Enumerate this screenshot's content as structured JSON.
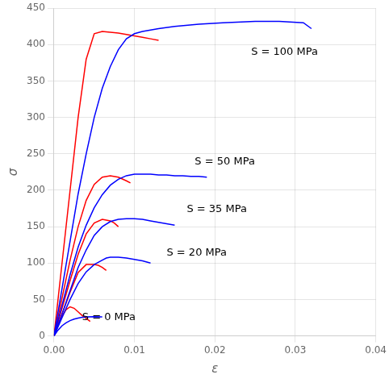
{
  "chart_data": {
    "type": "line",
    "xlabel": "ε",
    "ylabel": "σ",
    "xlim": [
      0,
      0.04
    ],
    "ylim": [
      0,
      450
    ],
    "xticks": [
      {
        "value": 0,
        "label": "0.00"
      },
      {
        "value": 0.01,
        "label": "0.01"
      },
      {
        "value": 0.02,
        "label": "0.02"
      },
      {
        "value": 0.03,
        "label": "0.03"
      },
      {
        "value": 0.04,
        "label": "0.04"
      }
    ],
    "yticks": [
      0,
      50,
      100,
      150,
      200,
      250,
      300,
      350,
      400,
      450
    ],
    "grid": true,
    "annotations": [
      {
        "text": "S = 100 MPa",
        "x": 0.0245,
        "y": 383
      },
      {
        "text": "S = 50 MPa",
        "x": 0.0175,
        "y": 232
      },
      {
        "text": "S = 35 MPa",
        "x": 0.0165,
        "y": 167
      },
      {
        "text": "S = 20 MPa",
        "x": 0.014,
        "y": 107
      },
      {
        "text": "S = 0 MPa",
        "x": 0.0035,
        "y": 18
      }
    ],
    "series": [
      {
        "color": "#FF0000",
        "x": [
          0,
          0.0005,
          0.001,
          0.0015,
          0.002,
          0.0025,
          0.003,
          0.0035,
          0.004,
          0.0045
        ],
        "values": [
          0,
          14,
          27,
          36,
          40,
          38,
          33,
          28,
          24,
          20
        ]
      },
      {
        "color": "#FF0000",
        "x": [
          0,
          0.001,
          0.002,
          0.003,
          0.004,
          0.005,
          0.0055,
          0.006,
          0.0065
        ],
        "values": [
          0,
          30,
          60,
          87,
          98,
          98,
          97,
          94,
          90
        ]
      },
      {
        "color": "#FF0000",
        "x": [
          0,
          0.001,
          0.002,
          0.003,
          0.004,
          0.005,
          0.006,
          0.007,
          0.0075,
          0.008
        ],
        "values": [
          0,
          38,
          76,
          112,
          140,
          155,
          160,
          158,
          155,
          150
        ]
      },
      {
        "color": "#FF0000",
        "x": [
          0,
          0.001,
          0.002,
          0.003,
          0.004,
          0.005,
          0.006,
          0.007,
          0.008,
          0.009,
          0.0095
        ],
        "values": [
          0,
          52,
          104,
          150,
          186,
          208,
          218,
          220,
          218,
          213,
          210
        ]
      },
      {
        "color": "#FF0000",
        "x": [
          0,
          0.001,
          0.002,
          0.003,
          0.004,
          0.005,
          0.006,
          0.007,
          0.008,
          0.009,
          0.01,
          0.011,
          0.012,
          0.013
        ],
        "values": [
          0,
          100,
          200,
          300,
          380,
          415,
          418,
          417,
          416,
          414,
          412,
          410,
          408,
          406
        ]
      },
      {
        "color": "#0000FF",
        "x": [
          0,
          0.0005,
          0.001,
          0.0015,
          0.002,
          0.0025,
          0.003,
          0.0035,
          0.004,
          0.005,
          0.006
        ],
        "values": [
          0,
          8,
          14,
          18,
          21,
          23,
          24.5,
          25.5,
          26,
          26.5,
          26
        ]
      },
      {
        "color": "#0000FF",
        "x": [
          0,
          0.001,
          0.002,
          0.003,
          0.004,
          0.005,
          0.006,
          0.0065,
          0.007,
          0.008,
          0.009,
          0.01,
          0.011,
          0.012
        ],
        "values": [
          0,
          25,
          50,
          72,
          88,
          98,
          104,
          107,
          108,
          108,
          107,
          105,
          103,
          100
        ]
      },
      {
        "color": "#0000FF",
        "x": [
          0,
          0.001,
          0.002,
          0.003,
          0.004,
          0.005,
          0.006,
          0.007,
          0.008,
          0.009,
          0.01,
          0.011,
          0.012,
          0.013,
          0.014,
          0.015
        ],
        "values": [
          0,
          30,
          62,
          94,
          118,
          138,
          150,
          157,
          160,
          161,
          161,
          160,
          158,
          156,
          154,
          152
        ]
      },
      {
        "color": "#0000FF",
        "x": [
          0,
          0.001,
          0.002,
          0.003,
          0.004,
          0.005,
          0.006,
          0.007,
          0.008,
          0.009,
          0.01,
          0.011,
          0.012,
          0.013,
          0.014,
          0.015,
          0.016,
          0.017,
          0.018,
          0.019
        ],
        "values": [
          0,
          42,
          84,
          122,
          152,
          176,
          194,
          207,
          215,
          220,
          222,
          222,
          222,
          221,
          221,
          220,
          220,
          219,
          219,
          218
        ]
      },
      {
        "color": "#0000FF",
        "x": [
          0,
          0.001,
          0.002,
          0.003,
          0.004,
          0.005,
          0.006,
          0.007,
          0.008,
          0.009,
          0.01,
          0.011,
          0.012,
          0.013,
          0.015,
          0.018,
          0.021,
          0.025,
          0.028,
          0.031,
          0.032
        ],
        "values": [
          0,
          65,
          130,
          195,
          250,
          300,
          340,
          370,
          393,
          408,
          415,
          418,
          420,
          422,
          425,
          428,
          430,
          432,
          432,
          430,
          422
        ]
      }
    ]
  }
}
